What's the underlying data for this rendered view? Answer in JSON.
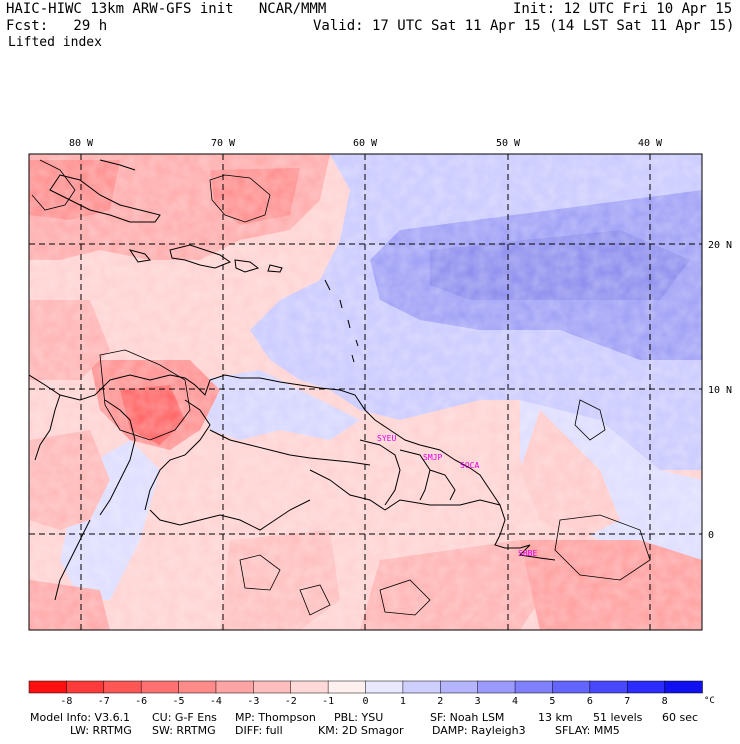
{
  "header": {
    "model_title": "HAIC-HIWC 13km ARW-GFS init   NCAR/MMM",
    "init_label": "Init: 12 UTC Fri 10 Apr 15",
    "forecast_label": "Fcst:   29 h",
    "valid_label": "Valid: 17 UTC Sat 11 Apr 15 (14 LST Sat 11 Apr 15)",
    "field_name": "Lifted index"
  },
  "map": {
    "longitude_labels": [
      "80 W",
      "70 W",
      "60 W",
      "50 W",
      "40 W"
    ],
    "latitude_labels": [
      "20 N",
      "10 N",
      "0"
    ],
    "station_labels": [
      "SYEU",
      "SMJP",
      "SOCA",
      "SBBE"
    ]
  },
  "colorbar": {
    "tick_labels": [
      "-8",
      "-7",
      "-6",
      "-5",
      "-4",
      "-3",
      "-2",
      "-1",
      "0",
      "1",
      "2",
      "3",
      "4",
      "5",
      "6",
      "7",
      "8"
    ],
    "unit": "°C",
    "colors": [
      "#ff1010",
      "#ff3a3a",
      "#ff5656",
      "#ff7070",
      "#ff8a8a",
      "#ffa4a4",
      "#ffbebe",
      "#ffd8d8",
      "#fff0f0",
      "#e8e8ff",
      "#cfcfff",
      "#b4b4ff",
      "#9a9aff",
      "#8080ff",
      "#6464ff",
      "#4848ff",
      "#2c2cff",
      "#1010f0"
    ]
  },
  "footer": {
    "line1_a": "Model Info: V3.6.1",
    "line1_b": "CU: G-F Ens",
    "line1_c": "MP: Thompson",
    "line1_d": "PBL: YSU",
    "line1_e": "SF: Noah LSM",
    "line1_f": "13 km",
    "line1_g": "51 levels",
    "line1_h": "60 sec",
    "line2_a": "LW: RRTMG",
    "line2_b": "SW: RRTMG",
    "line2_c": "DIFF: full",
    "line2_d": "KM: 2D Smagor",
    "line2_e": "DAMP: Rayleigh3",
    "line2_f": "SFLAY: MM5"
  }
}
